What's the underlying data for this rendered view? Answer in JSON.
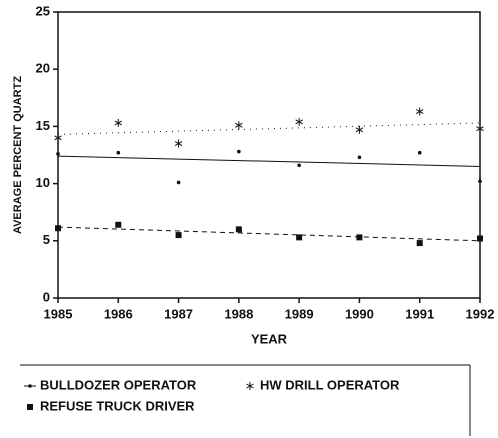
{
  "chart_data": {
    "type": "scatter",
    "xlabel": "YEAR",
    "ylabel": "AVERAGE PERCENT QUARTZ",
    "x": [
      1985,
      1986,
      1987,
      1988,
      1989,
      1990,
      1991,
      1992
    ],
    "xlim": [
      1985,
      1992
    ],
    "xticks": [
      1985,
      1986,
      1987,
      1988,
      1989,
      1990,
      1991,
      1992
    ],
    "ylim": [
      0,
      25
    ],
    "yticks": [
      0,
      5,
      10,
      15,
      20,
      25
    ],
    "series": [
      {
        "name": "BULLDOZER OPERATOR",
        "color": "#111111",
        "marker": "dot",
        "trend_style": "solid",
        "values": [
          12.6,
          12.7,
          10.1,
          12.8,
          11.6,
          12.3,
          12.7,
          10.2
        ],
        "trend": [
          12.4,
          11.5
        ]
      },
      {
        "name": "HW DRILL OPERATOR",
        "color": "#111111",
        "marker": "asterisk",
        "trend_style": "dotted",
        "values": [
          14.0,
          15.3,
          13.5,
          15.1,
          15.4,
          14.7,
          16.3,
          14.8
        ],
        "trend": [
          14.3,
          15.3
        ]
      },
      {
        "name": "REFUSE TRUCK DRIVER",
        "color": "#111111",
        "marker": "square",
        "trend_style": "dashed",
        "values": [
          6.1,
          6.4,
          5.5,
          6.0,
          5.3,
          5.3,
          4.8,
          5.2
        ],
        "trend": [
          6.2,
          5.0
        ]
      }
    ]
  }
}
